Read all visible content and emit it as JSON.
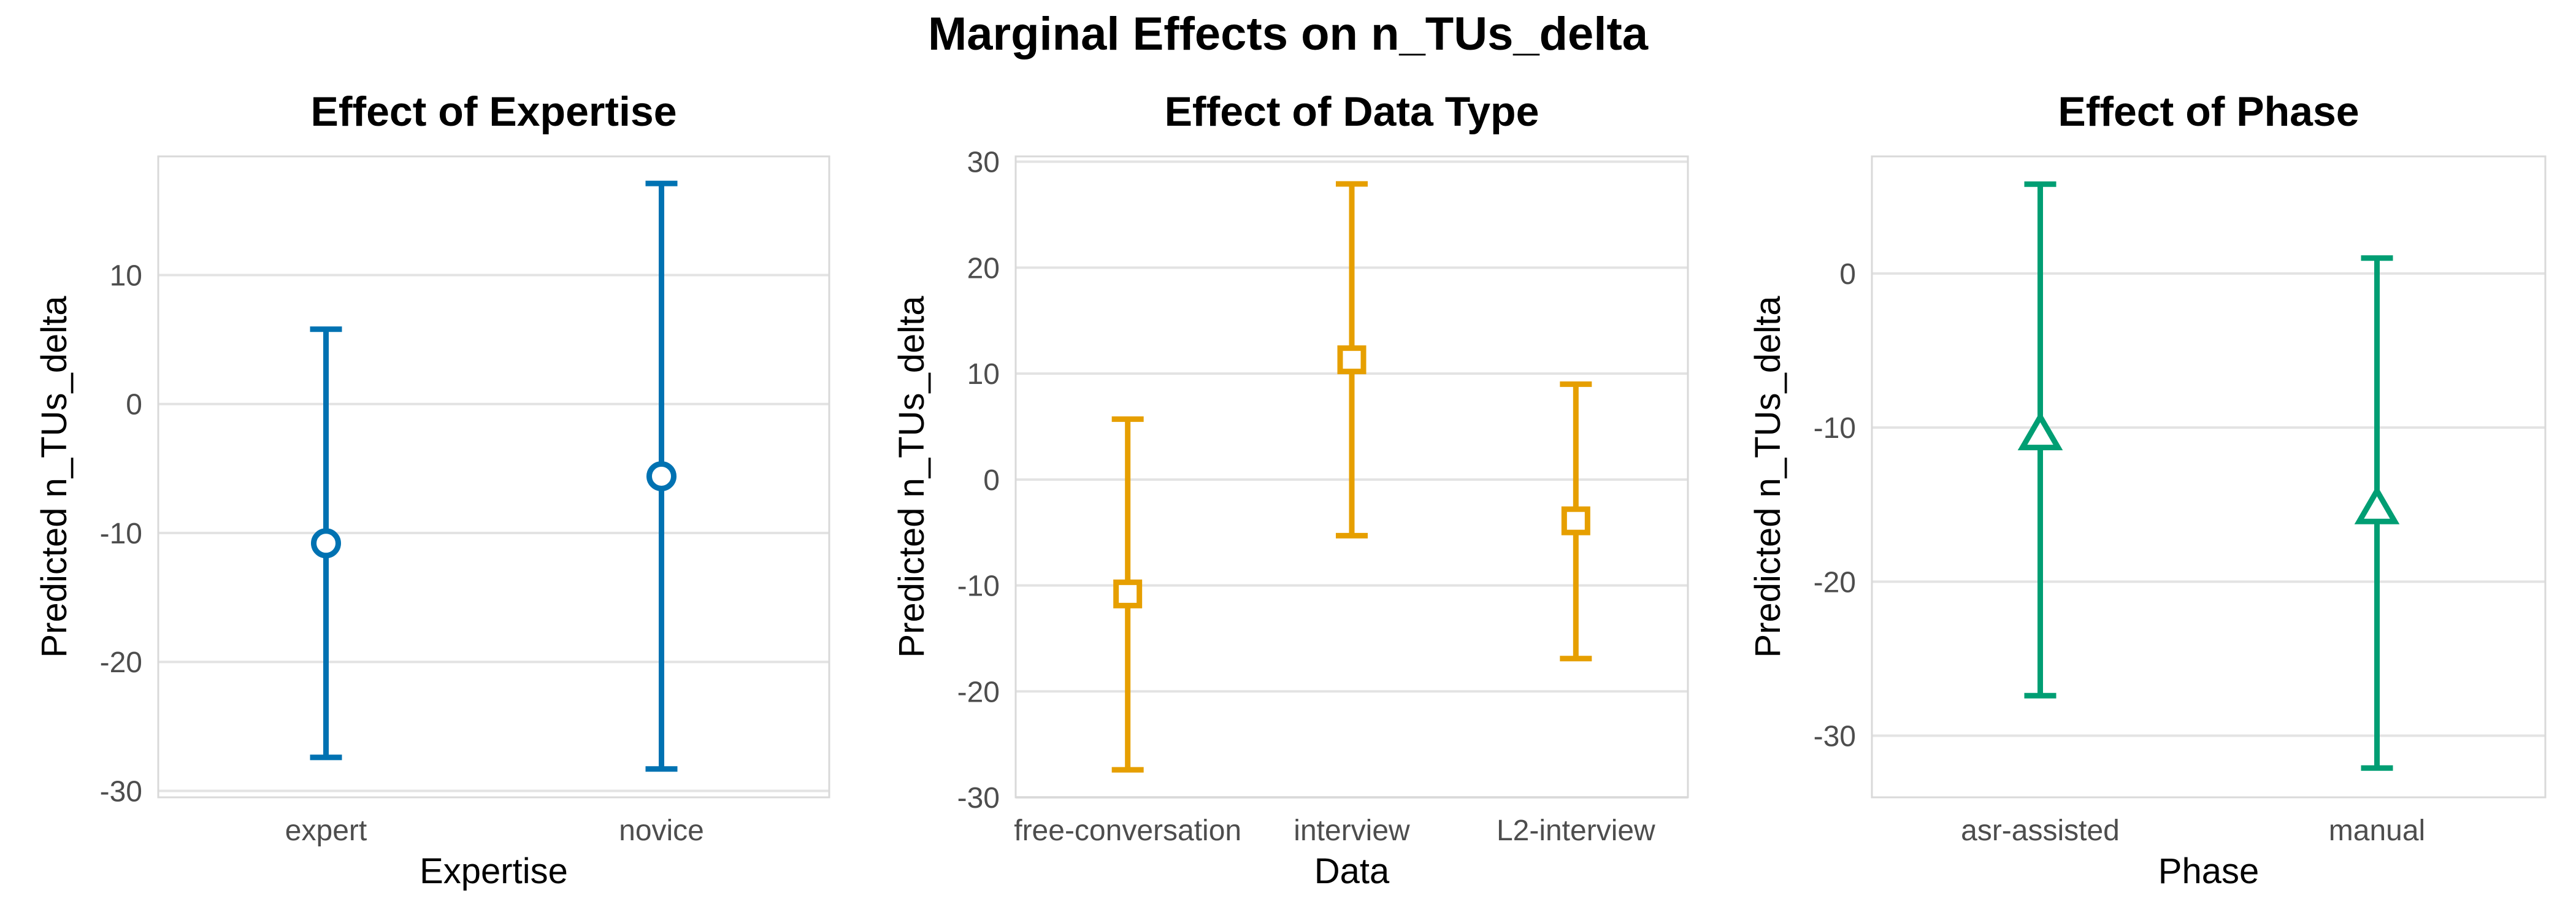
{
  "suptitle": "Marginal Effects on n_TUs_delta",
  "colors": {
    "expertise": "#0072B2",
    "data": "#E69F00",
    "phase": "#009E73"
  },
  "chart_data": [
    {
      "type": "errorbar",
      "title": "Effect of Expertise",
      "xlabel": "Expertise",
      "ylabel": "Predicted n_TUs_delta",
      "categories": [
        "expert",
        "novice"
      ],
      "estimates": [
        -10.8,
        -5.6
      ],
      "lower": [
        -27.4,
        -28.3
      ],
      "upper": [
        5.8,
        17.1
      ],
      "ylim": [
        -30.5,
        19.2
      ],
      "yticks": [
        -30,
        -20,
        -10,
        0,
        10
      ],
      "marker": "circle",
      "color_key": "expertise",
      "grid": true
    },
    {
      "type": "errorbar",
      "title": "Effect of Data Type",
      "xlabel": "Data",
      "ylabel": "Predicted n_TUs_delta",
      "categories": [
        "free-conversation",
        "interview",
        "L2-interview"
      ],
      "estimates": [
        -10.8,
        11.3,
        -3.9
      ],
      "lower": [
        -27.4,
        -5.3,
        -16.9
      ],
      "upper": [
        5.7,
        27.9,
        9.0
      ],
      "ylim": [
        -30,
        30.5
      ],
      "yticks": [
        -30,
        -20,
        -10,
        0,
        10,
        20,
        30
      ],
      "marker": "square",
      "color_key": "data",
      "grid": true
    },
    {
      "type": "errorbar",
      "title": "Effect of Phase",
      "xlabel": "Phase",
      "ylabel": "Predicted n_TUs_delta",
      "categories": [
        "asr-assisted",
        "manual"
      ],
      "estimates": [
        -10.5,
        -15.3
      ],
      "lower": [
        -27.4,
        -32.1
      ],
      "upper": [
        5.8,
        1.0
      ],
      "ylim": [
        -34,
        7.6
      ],
      "yticks": [
        -30,
        -20,
        -10,
        0
      ],
      "marker": "triangle",
      "color_key": "phase",
      "grid": true
    }
  ]
}
